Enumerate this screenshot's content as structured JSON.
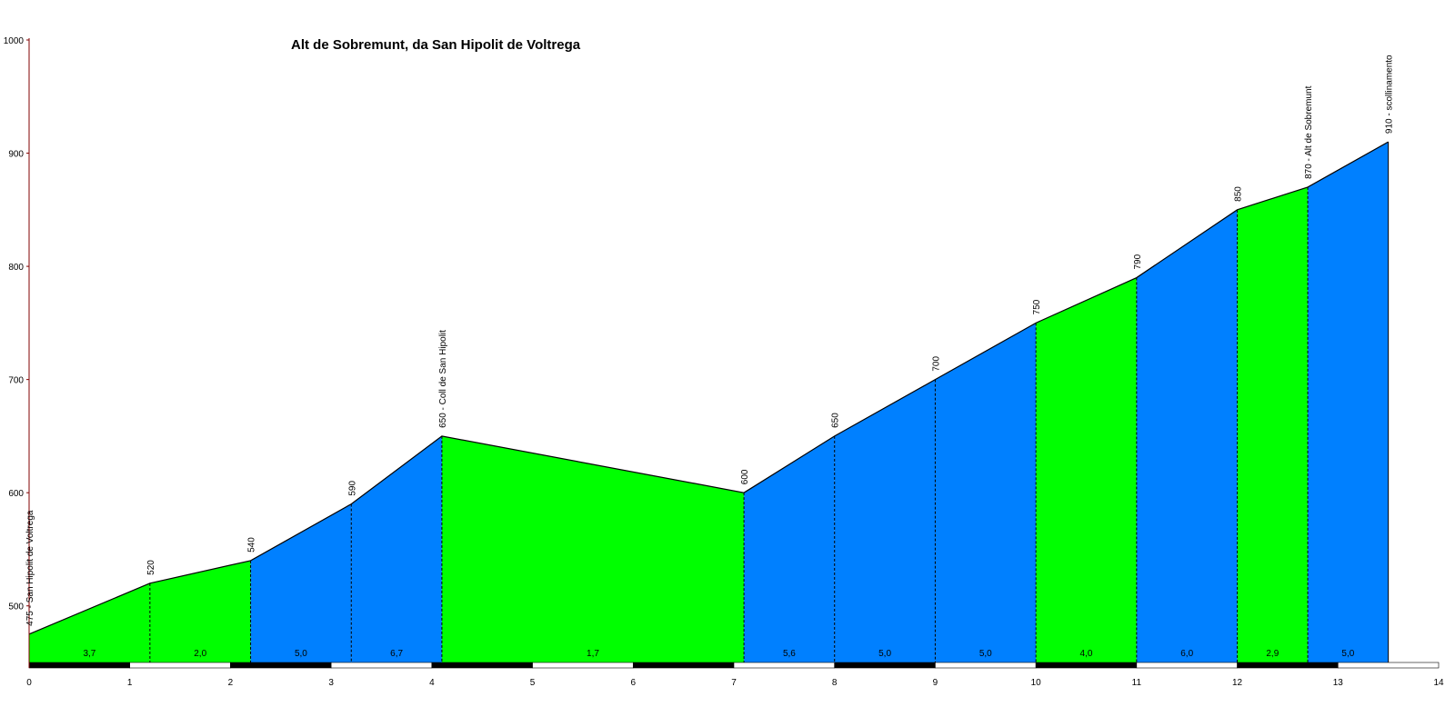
{
  "chart_data": {
    "type": "area",
    "title": "Alt de Sobremunt, da San Hipolit de Voltrega",
    "xlim": [
      0,
      14
    ],
    "ylim": [
      450,
      1000
    ],
    "x_ticks": [
      "0",
      "1",
      "2",
      "3",
      "4",
      "5",
      "6",
      "7",
      "8",
      "9",
      "10",
      "11",
      "12",
      "13",
      "14"
    ],
    "y_ticks": [
      "500",
      "600",
      "700",
      "800",
      "900",
      "1000"
    ],
    "profile": [
      {
        "x": 0.0,
        "y": 475,
        "label": "475 - San Hipolit de Voltrega"
      },
      {
        "x": 1.2,
        "y": 520,
        "label": "520"
      },
      {
        "x": 2.2,
        "y": 540,
        "label": "540"
      },
      {
        "x": 3.2,
        "y": 590,
        "label": "590"
      },
      {
        "x": 4.1,
        "y": 650,
        "label": "650 - Coll de San Hipolit"
      },
      {
        "x": 7.1,
        "y": 600,
        "label": "600"
      },
      {
        "x": 8.0,
        "y": 650,
        "label": "650"
      },
      {
        "x": 9.0,
        "y": 700,
        "label": "700"
      },
      {
        "x": 10.0,
        "y": 750,
        "label": "750"
      },
      {
        "x": 11.0,
        "y": 790,
        "label": "790"
      },
      {
        "x": 12.0,
        "y": 850,
        "label": "850"
      },
      {
        "x": 12.7,
        "y": 870,
        "label": "870 - Alt de Sobremunt"
      },
      {
        "x": 13.5,
        "y": 910,
        "label": "910 - scollinamento"
      }
    ],
    "segments": [
      {
        "gradient": "3,7",
        "color": "#00ff00"
      },
      {
        "gradient": "2,0",
        "color": "#00ff00"
      },
      {
        "gradient": "5,0",
        "color": "#0080ff"
      },
      {
        "gradient": "6,7",
        "color": "#0080ff"
      },
      {
        "gradient": "1,7",
        "color": "#00ff00"
      },
      {
        "gradient": "5,6",
        "color": "#0080ff"
      },
      {
        "gradient": "5,0",
        "color": "#0080ff"
      },
      {
        "gradient": "5,0",
        "color": "#0080ff"
      },
      {
        "gradient": "4,0",
        "color": "#00ff00"
      },
      {
        "gradient": "6,0",
        "color": "#0080ff"
      },
      {
        "gradient": "2,9",
        "color": "#00ff00"
      },
      {
        "gradient": "5,0",
        "color": "#0080ff"
      }
    ],
    "grid": false,
    "legend": "none",
    "axis_color": "#800000"
  }
}
